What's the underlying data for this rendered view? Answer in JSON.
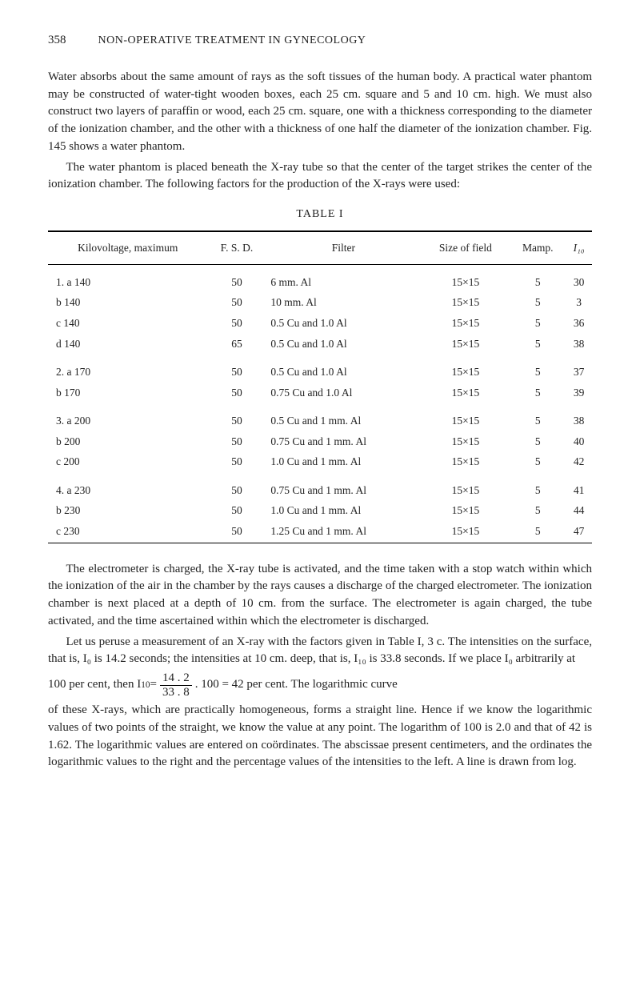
{
  "page_number": "358",
  "running_title": "NON-OPERATIVE TREATMENT IN GYNECOLOGY",
  "paragraphs": {
    "p1": "Water absorbs about the same amount of rays as the soft tissues of the human body. A practical water phantom may be constructed of water-tight wooden boxes, each 25 cm. square and 5 and 10 cm. high. We must also construct two layers of paraffin or wood, each 25 cm. square, one with a thickness cor­responding to the diameter of the ionization chamber, and the other with a thickness of one half the diameter of the ionization chamber. Fig. 145 shows a water phantom.",
    "p2": "The water phantom is placed beneath the X-ray tube so that the center of the target strikes the center of the ionization chamber. The following factors for the production of the X-rays were used:",
    "p3": "The electrometer is charged, the X-ray tube is activated, and the time taken with a stop watch within which the ionization of the air in the chamber by the rays causes a discharge of the charged electrometer. The ionization chamber is next placed at a depth of 10 cm. from the surface. The electrom­eter is again charged, the tube activated, and the time ascertained within which the electrometer is discharged.",
    "p4a": "Let us peruse a measurement of an X-ray with the factors given in Table I, 3 c. The intensities on the surface, that is, I₀ is 14.2 seconds; the intensi­ties at 10 cm. deep, that is, I₁₀ is 33.8 seconds. If we place I₀ arbitrarily at",
    "p4_eq_left": "100 per cent, then I",
    "p4_eq_sub": "10",
    "p4_eq_eq1": " = ",
    "p4_eq_num": "14 . 2",
    "p4_eq_den": "33 . 8",
    "p4_eq_right": ". 100 = 42 per cent. The logarithmic curve",
    "p4b": "of these X-rays, which are practically homogeneous, forms a straight line. Hence if we know the logarithmic values of two points of the straight, we know the value at any point. The logarithm of 100 is 2.0 and that of 42 is 1.62. The logarithmic values are entered on coördinates. The abscissae present centimeters, and the ordinates the logarithmic values to the right and the percentage values of the intensities to the left. A line is drawn from log."
  },
  "table_title": "TABLE I",
  "table": {
    "headers": [
      "Kilovoltage, maximum",
      "F. S. D.",
      "Filter",
      "Size of field",
      "Mamp.",
      "I₁₀"
    ],
    "groups": [
      [
        {
          "label": "1. a 140",
          "fsd": "50",
          "filter": "6 mm. Al",
          "field": "15×15",
          "mamp": "5",
          "i10": "30"
        },
        {
          "label": "b 140",
          "fsd": "50",
          "filter": "10 mm. Al",
          "field": "15×15",
          "mamp": "5",
          "i10": "3"
        },
        {
          "label": "c 140",
          "fsd": "50",
          "filter": "0.5 Cu and 1.0 Al",
          "field": "15×15",
          "mamp": "5",
          "i10": "36"
        },
        {
          "label": "d 140",
          "fsd": "65",
          "filter": "0.5 Cu and 1.0 Al",
          "field": "15×15",
          "mamp": "5",
          "i10": "38"
        }
      ],
      [
        {
          "label": "2. a 170",
          "fsd": "50",
          "filter": "0.5 Cu and 1.0 Al",
          "field": "15×15",
          "mamp": "5",
          "i10": "37"
        },
        {
          "label": "b 170",
          "fsd": "50",
          "filter": "0.75 Cu and 1.0 Al",
          "field": "15×15",
          "mamp": "5",
          "i10": "39"
        }
      ],
      [
        {
          "label": "3. a 200",
          "fsd": "50",
          "filter": "0.5 Cu and 1 mm. Al",
          "field": "15×15",
          "mamp": "5",
          "i10": "38"
        },
        {
          "label": "b 200",
          "fsd": "50",
          "filter": "0.75 Cu and 1 mm. Al",
          "field": "15×15",
          "mamp": "5",
          "i10": "40"
        },
        {
          "label": "c 200",
          "fsd": "50",
          "filter": "1.0 Cu and 1 mm. Al",
          "field": "15×15",
          "mamp": "5",
          "i10": "42"
        }
      ],
      [
        {
          "label": "4. a 230",
          "fsd": "50",
          "filter": "0.75 Cu and 1 mm. Al",
          "field": "15×15",
          "mamp": "5",
          "i10": "41"
        },
        {
          "label": "b 230",
          "fsd": "50",
          "filter": "1.0 Cu and 1 mm. Al",
          "field": "15×15",
          "mamp": "5",
          "i10": "44"
        },
        {
          "label": "c 230",
          "fsd": "50",
          "filter": "1.25 Cu and 1 mm. Al",
          "field": "15×15",
          "mamp": "5",
          "i10": "47"
        }
      ]
    ]
  }
}
